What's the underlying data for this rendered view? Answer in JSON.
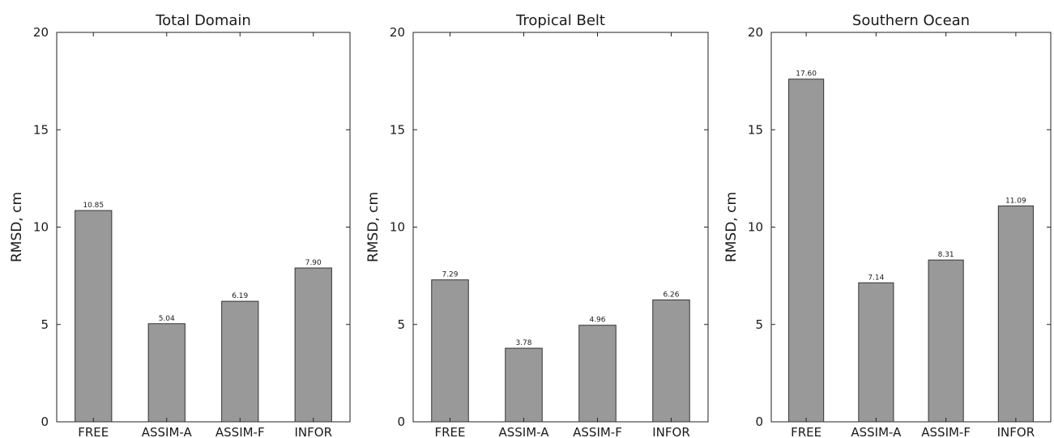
{
  "chart_data": [
    {
      "type": "bar",
      "title": "Total Domain",
      "ylabel": "RMSD, cm",
      "categories": [
        "FREE",
        "ASSIM-A",
        "ASSIM-F",
        "INFOR"
      ],
      "values": [
        10.85,
        5.04,
        6.19,
        7.9
      ],
      "value_labels": [
        "10.85",
        "5.04",
        "6.19",
        "7.90"
      ],
      "ylim": [
        0,
        20
      ],
      "yticks": [
        0,
        5,
        10,
        15,
        20
      ],
      "ytick_labels": [
        "0",
        "5",
        "10",
        "15",
        "20"
      ],
      "grid": false,
      "bar_color": "#999999"
    },
    {
      "type": "bar",
      "title": "Tropical Belt",
      "ylabel": "RMSD, cm",
      "categories": [
        "FREE",
        "ASSIM-A",
        "ASSIM-F",
        "INFOR"
      ],
      "values": [
        7.29,
        3.78,
        4.96,
        6.26
      ],
      "value_labels": [
        "7.29",
        "3.78",
        "4.96",
        "6.26"
      ],
      "ylim": [
        0,
        20
      ],
      "yticks": [
        0,
        5,
        10,
        15,
        20
      ],
      "ytick_labels": [
        "0",
        "5",
        "10",
        "15",
        "20"
      ],
      "grid": false,
      "bar_color": "#999999"
    },
    {
      "type": "bar",
      "title": "Southern Ocean",
      "ylabel": "RMSD, cm",
      "categories": [
        "FREE",
        "ASSIM-A",
        "ASSIM-F",
        "INFOR"
      ],
      "values": [
        17.6,
        7.14,
        8.31,
        11.09
      ],
      "value_labels": [
        "17.60",
        "7.14",
        "8.31",
        "11.09"
      ],
      "ylim": [
        0,
        20
      ],
      "yticks": [
        0,
        5,
        10,
        15,
        20
      ],
      "ytick_labels": [
        "0",
        "5",
        "10",
        "15",
        "20"
      ],
      "grid": false,
      "bar_color": "#999999"
    }
  ]
}
